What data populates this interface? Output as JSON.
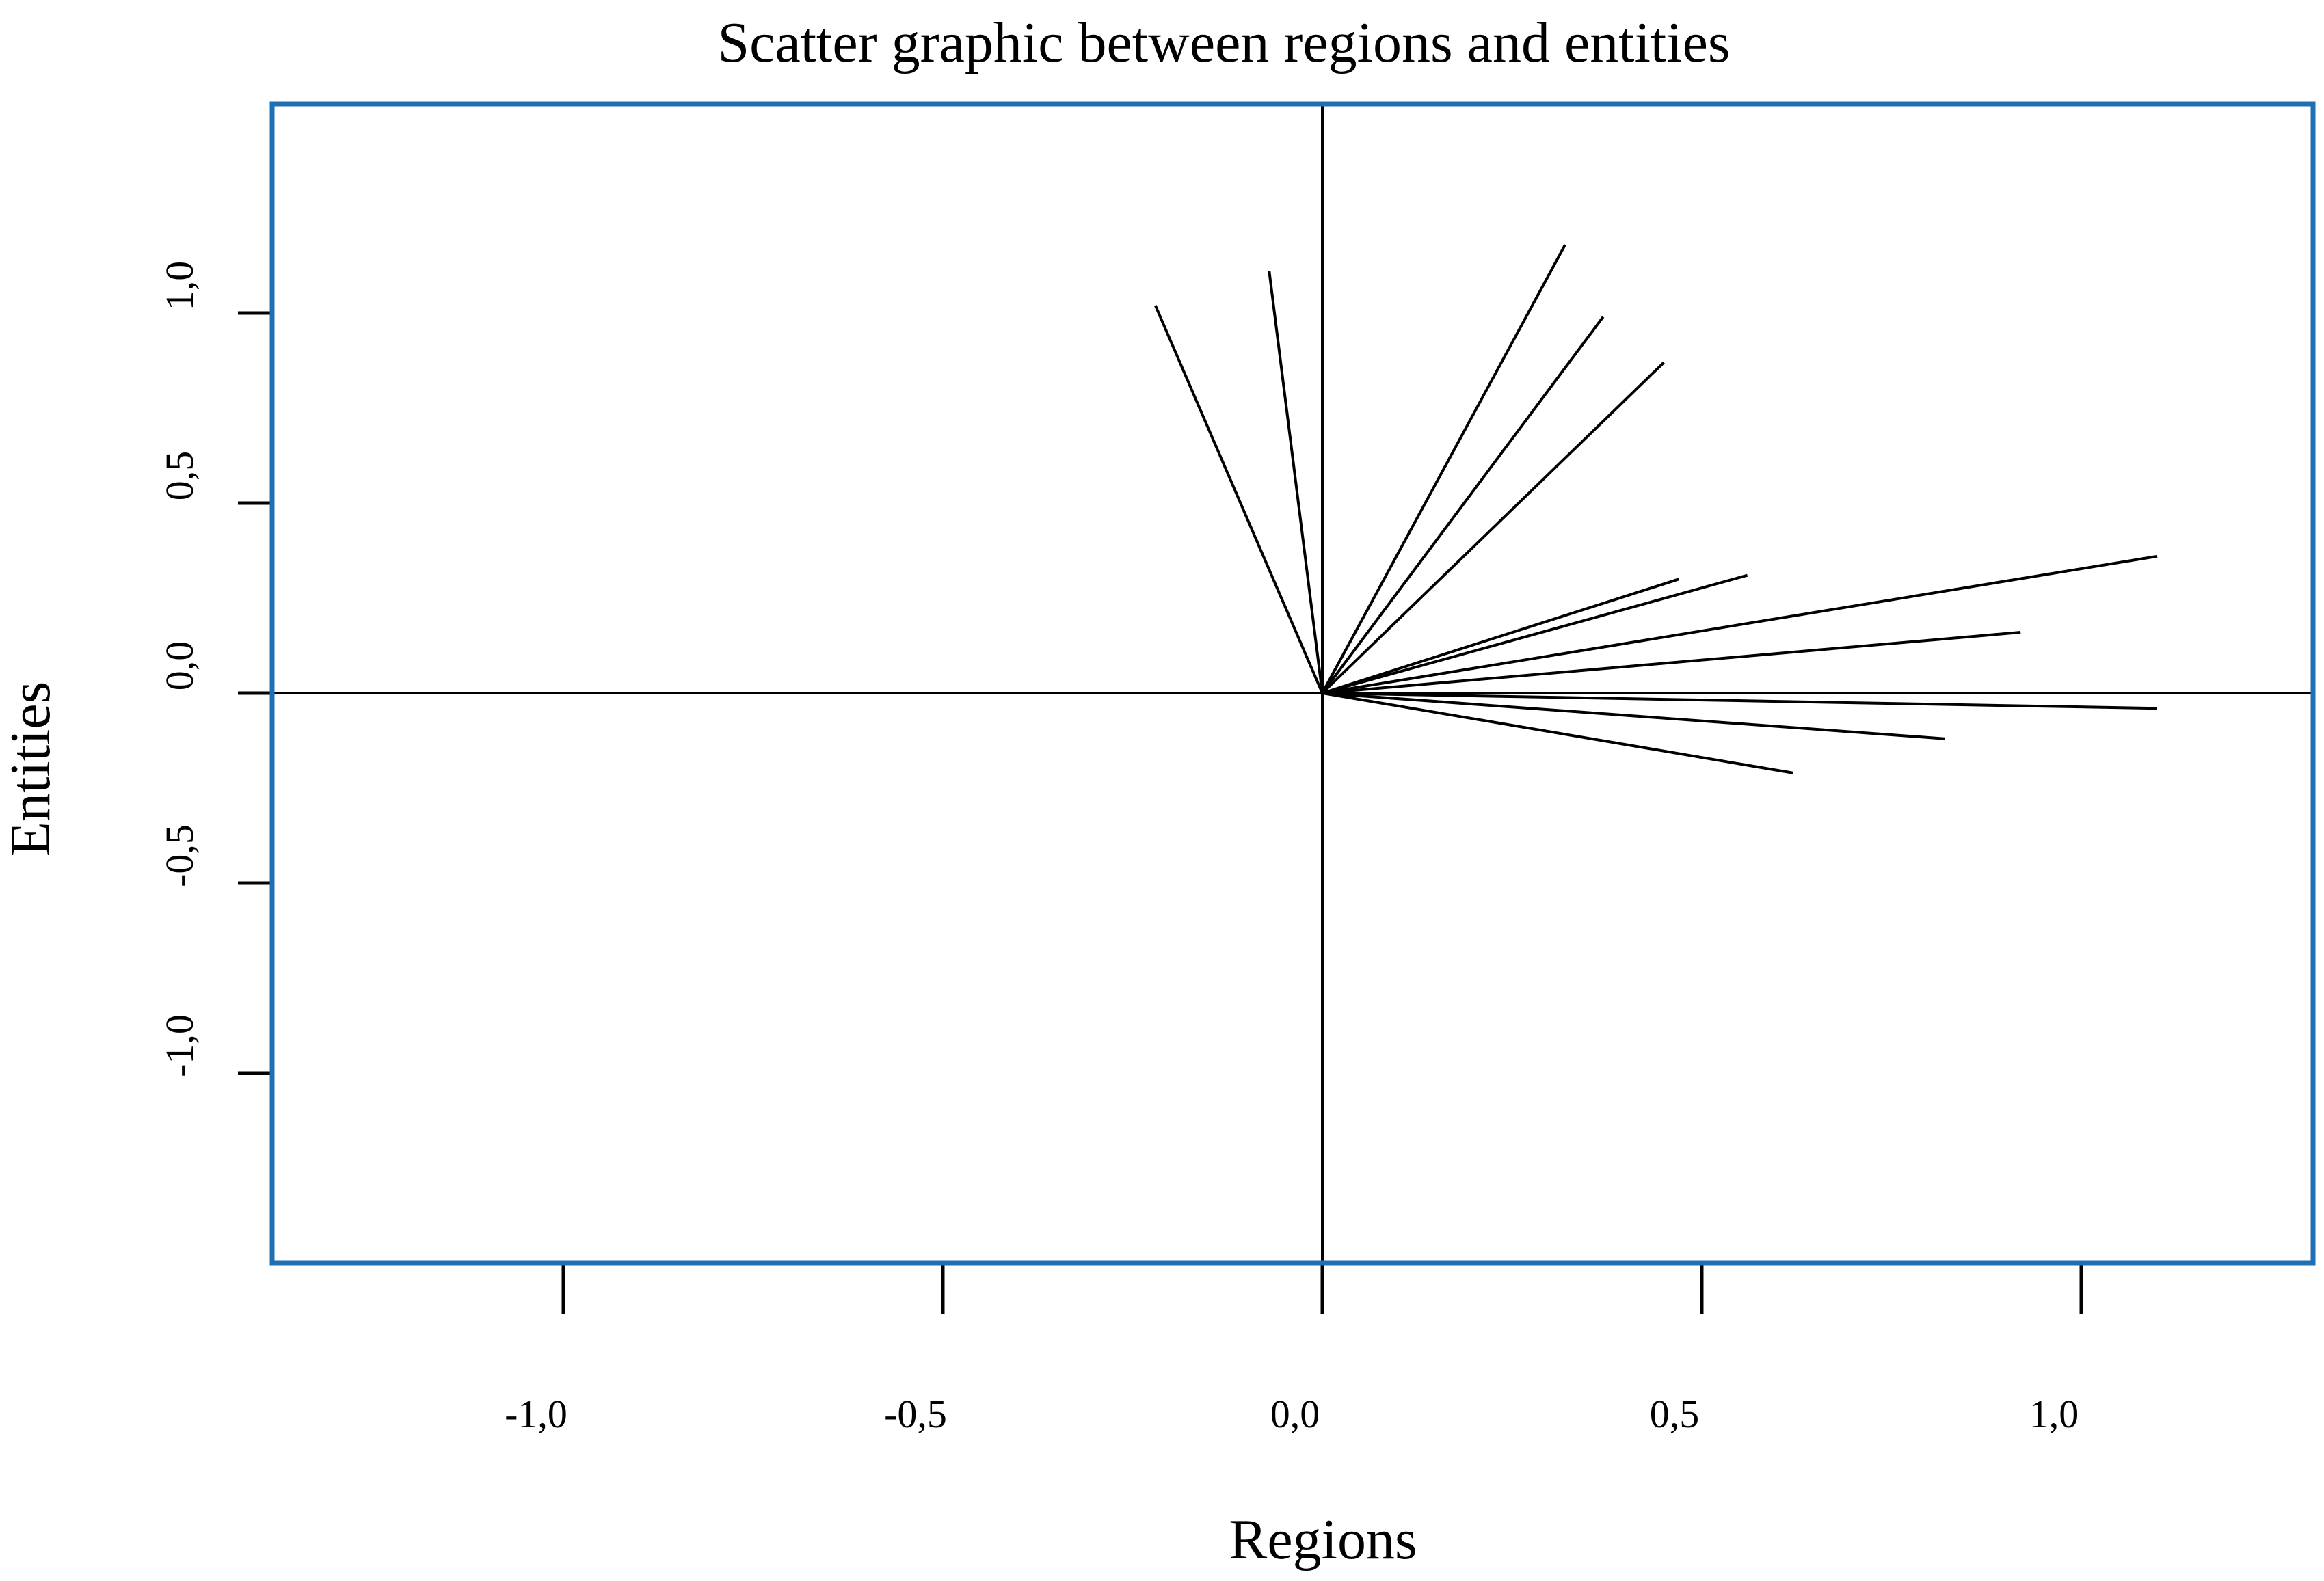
{
  "chart_data": {
    "type": "line",
    "title": "Scatter graphic between regions and entities",
    "xlabel": "Regions",
    "ylabel": "Entities",
    "xlim": [
      -1.1,
      1.3
    ],
    "ylim": [
      -1.25,
      1.45
    ],
    "x_ticks": [
      {
        "value": -1.0,
        "label": "-1,0"
      },
      {
        "value": -0.5,
        "label": "-0,5"
      },
      {
        "value": 0.0,
        "label": "0,0"
      },
      {
        "value": 0.5,
        "label": "0,5"
      },
      {
        "value": 1.0,
        "label": "1,0"
      }
    ],
    "y_ticks": [
      {
        "value": 1.0,
        "label": "1,0"
      },
      {
        "value": 0.5,
        "label": "0,5"
      },
      {
        "value": 0.0,
        "label": "0,0"
      },
      {
        "value": -0.5,
        "label": "-0,5"
      },
      {
        "value": -1.0,
        "label": "-1,0"
      }
    ],
    "reference_lines": {
      "x": 0,
      "y": 0
    },
    "grid": false,
    "frame_color": "#1f6fb4",
    "vectors": [
      {
        "x": -0.22,
        "y": 1.02
      },
      {
        "x": -0.07,
        "y": 1.11
      },
      {
        "x": 0.32,
        "y": 1.18
      },
      {
        "x": 0.37,
        "y": 0.99
      },
      {
        "x": 0.45,
        "y": 0.87
      },
      {
        "x": 0.47,
        "y": 0.3
      },
      {
        "x": 0.56,
        "y": 0.31
      },
      {
        "x": 1.1,
        "y": 0.36
      },
      {
        "x": 0.92,
        "y": 0.16
      },
      {
        "x": 1.1,
        "y": -0.04
      },
      {
        "x": 0.82,
        "y": -0.12
      },
      {
        "x": 0.62,
        "y": -0.21
      }
    ]
  }
}
